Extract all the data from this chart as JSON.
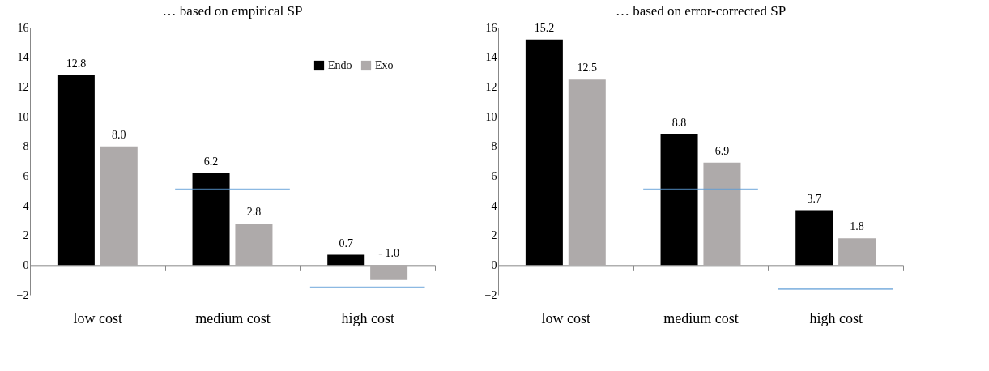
{
  "chart_data": [
    {
      "type": "bar",
      "title": "… based on empirical SP",
      "categories": [
        "low cost",
        "medium cost",
        "high cost"
      ],
      "series": [
        {
          "name": "Endo",
          "color": "#000000",
          "values": [
            12.8,
            6.2,
            0.7
          ],
          "value_labels": [
            "12.8",
            "6.2",
            "0.7"
          ]
        },
        {
          "name": "Exo",
          "color": "#aeaaaa",
          "values": [
            8.0,
            2.8,
            -1.0
          ],
          "value_labels": [
            "8.0",
            "2.8",
            "- 1.0"
          ]
        }
      ],
      "ylim": [
        -2,
        16
      ],
      "yticks": [
        -2,
        0,
        2,
        4,
        6,
        8,
        10,
        12,
        14,
        16
      ],
      "legend": "top right",
      "ref_lines": [
        {
          "axis": "y",
          "value": 5.1,
          "color": "#5b9bd5"
        },
        {
          "axis": "y",
          "value": -1.5,
          "color": "#5b9bd5"
        }
      ]
    },
    {
      "type": "bar",
      "title": "… based on error-corrected SP",
      "categories": [
        "low cost",
        "medium cost",
        "high cost"
      ],
      "series": [
        {
          "name": "Endo",
          "color": "#000000",
          "values": [
            15.2,
            8.8,
            3.7
          ],
          "value_labels": [
            "15.2",
            "8.8",
            "3.7"
          ]
        },
        {
          "name": "Exo",
          "color": "#aeaaaa",
          "values": [
            12.5,
            6.9,
            1.8
          ],
          "value_labels": [
            "12.5",
            "6.9",
            "1.8"
          ]
        }
      ],
      "ylim": [
        -2,
        16
      ],
      "yticks": [
        -2,
        0,
        2,
        4,
        6,
        8,
        10,
        12,
        14,
        16
      ],
      "legend": "top right",
      "ref_lines": [
        {
          "axis": "y",
          "value": 5.1,
          "color": "#5b9bd5"
        },
        {
          "axis": "y",
          "value": -1.6,
          "color": "#5b9bd5"
        }
      ]
    }
  ]
}
